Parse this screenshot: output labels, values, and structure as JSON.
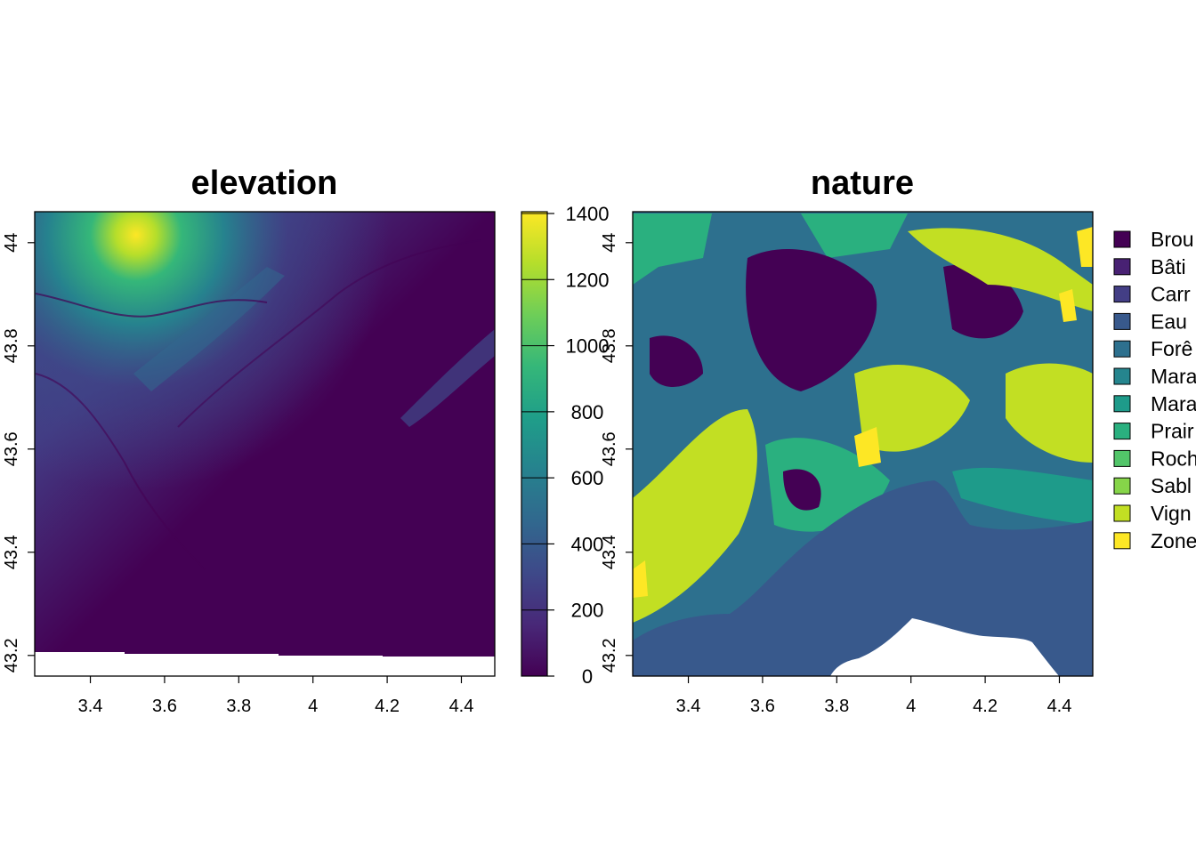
{
  "elevation_map": {
    "title": "elevation",
    "x_ticks": [
      "3.4",
      "3.6",
      "3.8",
      "4",
      "4.2",
      "4.4"
    ],
    "y_ticks": [
      "43.2",
      "43.4",
      "43.6",
      "43.8",
      "44"
    ],
    "colorbar": {
      "ticks": [
        "0",
        "200",
        "400",
        "600",
        "800",
        "1000",
        "1200",
        "1400"
      ],
      "colors": [
        "#440154",
        "#482878",
        "#3e4989",
        "#31688e",
        "#26828e",
        "#1f9e89",
        "#35b779",
        "#6ece58",
        "#b5de2b",
        "#fde725"
      ]
    }
  },
  "nature_map": {
    "title": "nature",
    "x_ticks": [
      "3.4",
      "3.6",
      "3.8",
      "4",
      "4.2",
      "4.4"
    ],
    "y_ticks": [
      "43.2",
      "43.4",
      "43.6",
      "43.8",
      "44"
    ],
    "legend": [
      {
        "label": "Brou",
        "color": "#440154"
      },
      {
        "label": "Bâti",
        "color": "#482173"
      },
      {
        "label": "Carr",
        "color": "#433e85"
      },
      {
        "label": "Eau",
        "color": "#38598c"
      },
      {
        "label": "Forê",
        "color": "#2d708e"
      },
      {
        "label": "Mara",
        "color": "#25858e"
      },
      {
        "label": "Mara",
        "color": "#1e9b8a"
      },
      {
        "label": "Prair",
        "color": "#2ab07f"
      },
      {
        "label": "Roch",
        "color": "#52c569"
      },
      {
        "label": "Sabl",
        "color": "#86d549"
      },
      {
        "label": "Vign",
        "color": "#c2df23"
      },
      {
        "label": "Zone",
        "color": "#fde725"
      }
    ]
  },
  "chart_data": [
    {
      "type": "heatmap",
      "title": "elevation",
      "xlim": [
        3.25,
        4.49
      ],
      "ylim": [
        43.16,
        44.06
      ],
      "x_ticks": [
        3.4,
        3.6,
        3.8,
        4.0,
        4.2,
        4.4
      ],
      "y_ticks": [
        43.2,
        43.4,
        43.6,
        43.8,
        44.0
      ],
      "value_range": [
        0,
        1400
      ],
      "colorbar_ticks": [
        0,
        200,
        400,
        600,
        800,
        1000,
        1200,
        1400
      ],
      "colormap": "viridis",
      "notes_visible": "highest values (~1400) in the north-west corner, low values (~0) in the south-east"
    },
    {
      "type": "heatmap",
      "title": "nature",
      "xlim": [
        3.25,
        4.49
      ],
      "ylim": [
        43.16,
        44.06
      ],
      "x_ticks": [
        3.4,
        3.6,
        3.8,
        4.0,
        4.2,
        4.4
      ],
      "y_ticks": [
        43.2,
        43.4,
        43.6,
        43.8,
        44.0
      ],
      "categories": [
        "Brou",
        "Bâti",
        "Carr",
        "Eau",
        "Forê",
        "Mara",
        "Mara",
        "Prair",
        "Roch",
        "Sabl",
        "Vign",
        "Zone"
      ],
      "colormap": "viridis"
    }
  ]
}
